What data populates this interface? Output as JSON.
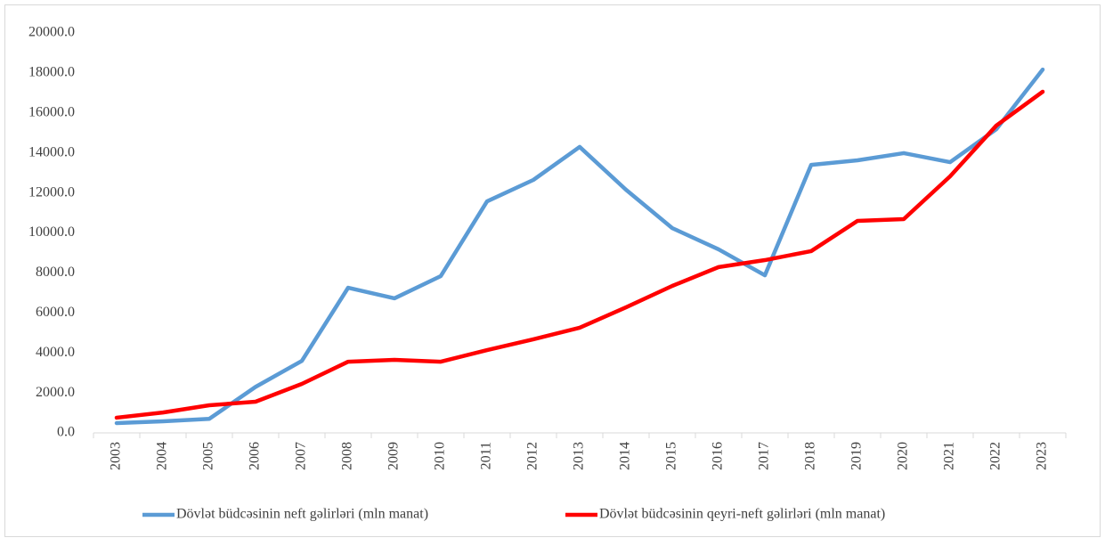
{
  "chart_data": {
    "type": "line",
    "categories": [
      "2003",
      "2004",
      "2005",
      "2006",
      "2007",
      "2008",
      "2009",
      "2010",
      "2011",
      "2012",
      "2013",
      "2014",
      "2015",
      "2016",
      "2017",
      "2018",
      "2019",
      "2020",
      "2021",
      "2022",
      "2023"
    ],
    "series": [
      {
        "name": "Dövlət büdcəsinin neft gəlirləri (mln manat)",
        "color": "#5b9bd5",
        "values": [
          490,
          580,
          700,
          2300,
          3600,
          7260,
          6730,
          7840,
          11580,
          12650,
          14300,
          12160,
          10240,
          9180,
          7880,
          13400,
          13630,
          13990,
          13540,
          15190,
          18170
        ]
      },
      {
        "name": "Dövlət büdcəsinin qeyri-neft gəlirləri (mln manat)",
        "color": "#ff0000",
        "values": [
          760,
          1020,
          1380,
          1560,
          2450,
          3560,
          3650,
          3560,
          4140,
          4680,
          5260,
          6280,
          7350,
          8290,
          8640,
          9090,
          10600,
          10690,
          12830,
          15370,
          17060
        ]
      }
    ],
    "ylim": [
      0,
      20000
    ],
    "yticks": [
      {
        "value": 0,
        "label": "0.0"
      },
      {
        "value": 2000,
        "label": "2000.0"
      },
      {
        "value": 4000,
        "label": "4000.0"
      },
      {
        "value": 6000,
        "label": "6000.0"
      },
      {
        "value": 8000,
        "label": "8000.0"
      },
      {
        "value": 10000,
        "label": "10000.0"
      },
      {
        "value": 12000,
        "label": "12000.0"
      },
      {
        "value": 14000,
        "label": "14000.0"
      },
      {
        "value": 16000,
        "label": "16000.0"
      },
      {
        "value": 18000,
        "label": "18000.0"
      },
      {
        "value": 20000,
        "label": "20000.0"
      }
    ],
    "legend": "bottom"
  }
}
